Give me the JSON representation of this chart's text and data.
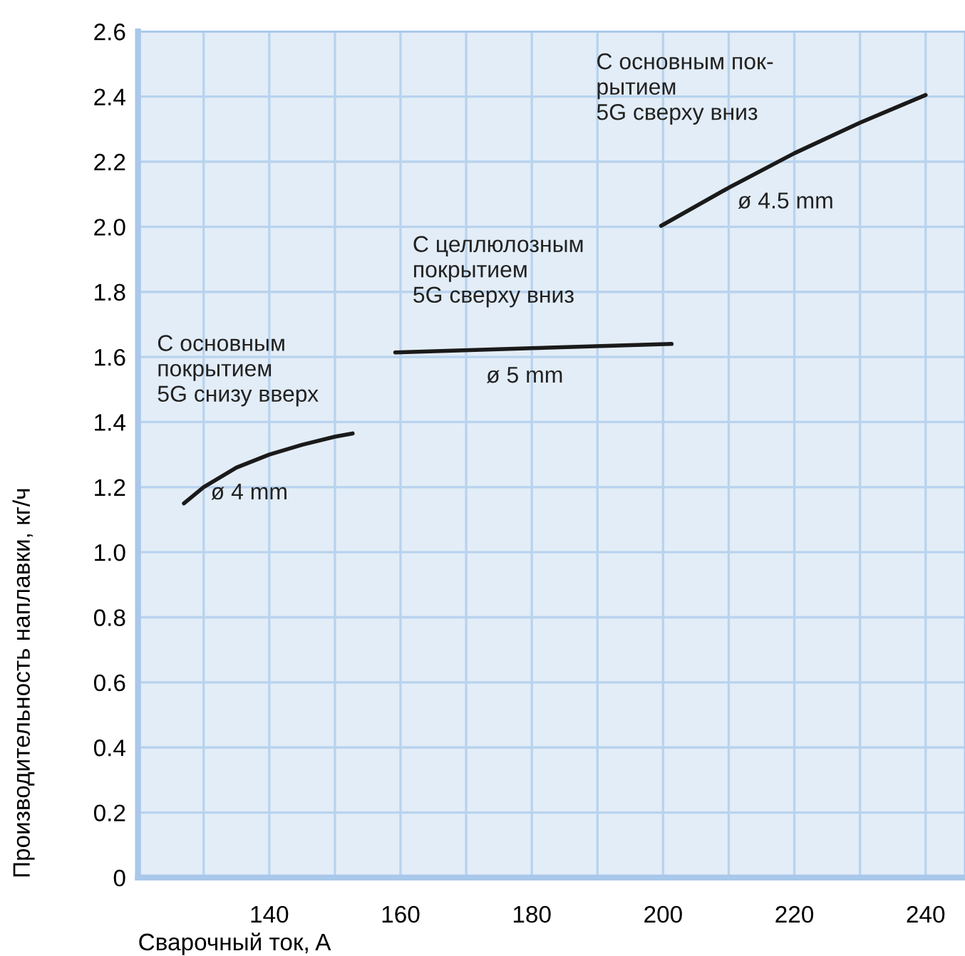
{
  "chart_data": {
    "type": "line",
    "xlabel": "Сварочный ток, A",
    "ylabel": "Производительность наплавки, кг/ч",
    "series": [
      {
        "color": "#1a1a1a",
        "x": [
          127,
          130,
          135,
          140,
          145,
          150,
          152.7
        ],
        "values": [
          1.15,
          1.2,
          1.26,
          1.3,
          1.33,
          1.355,
          1.365
        ]
      },
      {
        "color": "#1a1a1a",
        "x": [
          159.2,
          180,
          201.3
        ],
        "values": [
          1.614,
          1.627,
          1.64
        ]
      },
      {
        "color": "#1a1a1a",
        "x": [
          199.7,
          210,
          220,
          230,
          240
        ],
        "values": [
          2.003,
          2.12,
          2.226,
          2.32,
          2.405
        ]
      }
    ],
    "annotations": [
      "С основным\nпокрытием\n5G снизу вверх",
      "ø 4 mm",
      "С целлюлозным\nпокрытием\n5G сверху вниз",
      "ø 5 mm",
      "С основным пок-\nрытием\n5G сверху вниз",
      "ø 4.5 mm"
    ],
    "xlim": [
      120,
      246
    ],
    "xticks": [
      {
        "value": 130,
        "label": null
      },
      140,
      {
        "value": 150,
        "label": null
      },
      160,
      {
        "value": 170,
        "label": null
      },
      180,
      {
        "value": 190,
        "label": null
      },
      200,
      {
        "value": 210,
        "label": null
      },
      220,
      {
        "value": 230,
        "label": null
      },
      240
    ],
    "ylim": [
      0,
      2.6
    ],
    "yticks": [
      0,
      0.2,
      0.4,
      0.6,
      0.8,
      {
        "value": 1.0,
        "label": "1.0"
      },
      1.2,
      1.4,
      1.6,
      1.8,
      {
        "value": 2.0,
        "label": "2.0"
      },
      2.2,
      2.4,
      2.6
    ],
    "grid": true,
    "line_style": "solid",
    "marker": "none"
  }
}
